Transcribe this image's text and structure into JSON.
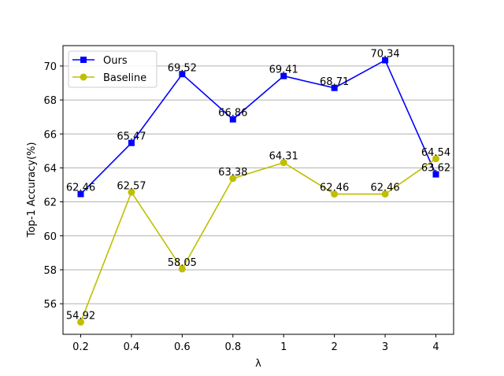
{
  "chart_data": {
    "type": "line",
    "title": "",
    "xlabel": "λ",
    "ylabel": "Top-1 Accuracy(%)",
    "categories": [
      "0.2",
      "0.4",
      "0.6",
      "0.8",
      "1",
      "2",
      "3",
      "4"
    ],
    "ylim": [
      54.2,
      71.2
    ],
    "yticks": [
      56,
      58,
      60,
      62,
      64,
      66,
      68,
      70
    ],
    "grid": "horizontal",
    "legend_position": "top-left",
    "series": [
      {
        "name": "Ours",
        "color": "#0000ff",
        "marker": "square",
        "values": [
          62.46,
          65.47,
          69.52,
          66.86,
          69.41,
          68.71,
          70.34,
          63.62
        ],
        "labels": [
          "62.46",
          "65.47",
          "69.52",
          "66.86",
          "69.41",
          "68.71",
          "70.34",
          "63.62"
        ]
      },
      {
        "name": "Baseline",
        "color": "#bfbf00",
        "marker": "circle",
        "values": [
          54.92,
          62.57,
          58.05,
          63.38,
          64.31,
          62.46,
          62.46,
          64.54
        ],
        "labels": [
          "54.92",
          "62.57",
          "58.05",
          "63.38",
          "64.31",
          "62.46",
          "62.46",
          "64.54"
        ]
      }
    ]
  }
}
